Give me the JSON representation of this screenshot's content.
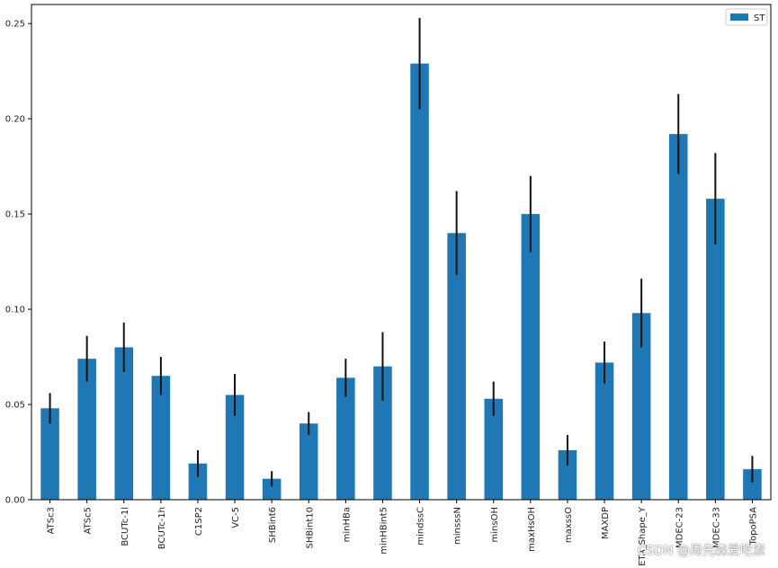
{
  "chart_data": {
    "type": "bar",
    "categories": [
      "ATSc3",
      "ATSc5",
      "BCUTc-1l",
      "BCUTc-1h",
      "C1SP2",
      "VC-5",
      "SHBint6",
      "SHBint10",
      "minHBa",
      "minHBint5",
      "mindssC",
      "minsssN",
      "minsOH",
      "maxHsOH",
      "maxssO",
      "MAXDP",
      "ETA_Shape_Y",
      "MDEC-23",
      "MDEC-33",
      "TopoPSA"
    ],
    "series": [
      {
        "name": "ST",
        "values": [
          0.048,
          0.074,
          0.08,
          0.065,
          0.019,
          0.055,
          0.011,
          0.04,
          0.064,
          0.07,
          0.229,
          0.14,
          0.053,
          0.15,
          0.026,
          0.072,
          0.098,
          0.192,
          0.158,
          0.016
        ],
        "errors": [
          0.008,
          0.012,
          0.013,
          0.01,
          0.007,
          0.011,
          0.004,
          0.006,
          0.01,
          0.018,
          0.024,
          0.022,
          0.009,
          0.02,
          0.008,
          0.011,
          0.018,
          0.021,
          0.024,
          0.007
        ],
        "color": "#1f77b4"
      }
    ],
    "ylim": [
      0,
      0.26
    ],
    "yticks": [
      "0.00",
      "0.05",
      "0.10",
      "0.15",
      "0.20",
      "0.25"
    ],
    "ytick_values": [
      0,
      0.05,
      0.1,
      0.15,
      0.2,
      0.25
    ],
    "legend": "top-right",
    "grid": false,
    "error_color": "#111111"
  },
  "watermark": "CSDN @周先森爱吃素"
}
